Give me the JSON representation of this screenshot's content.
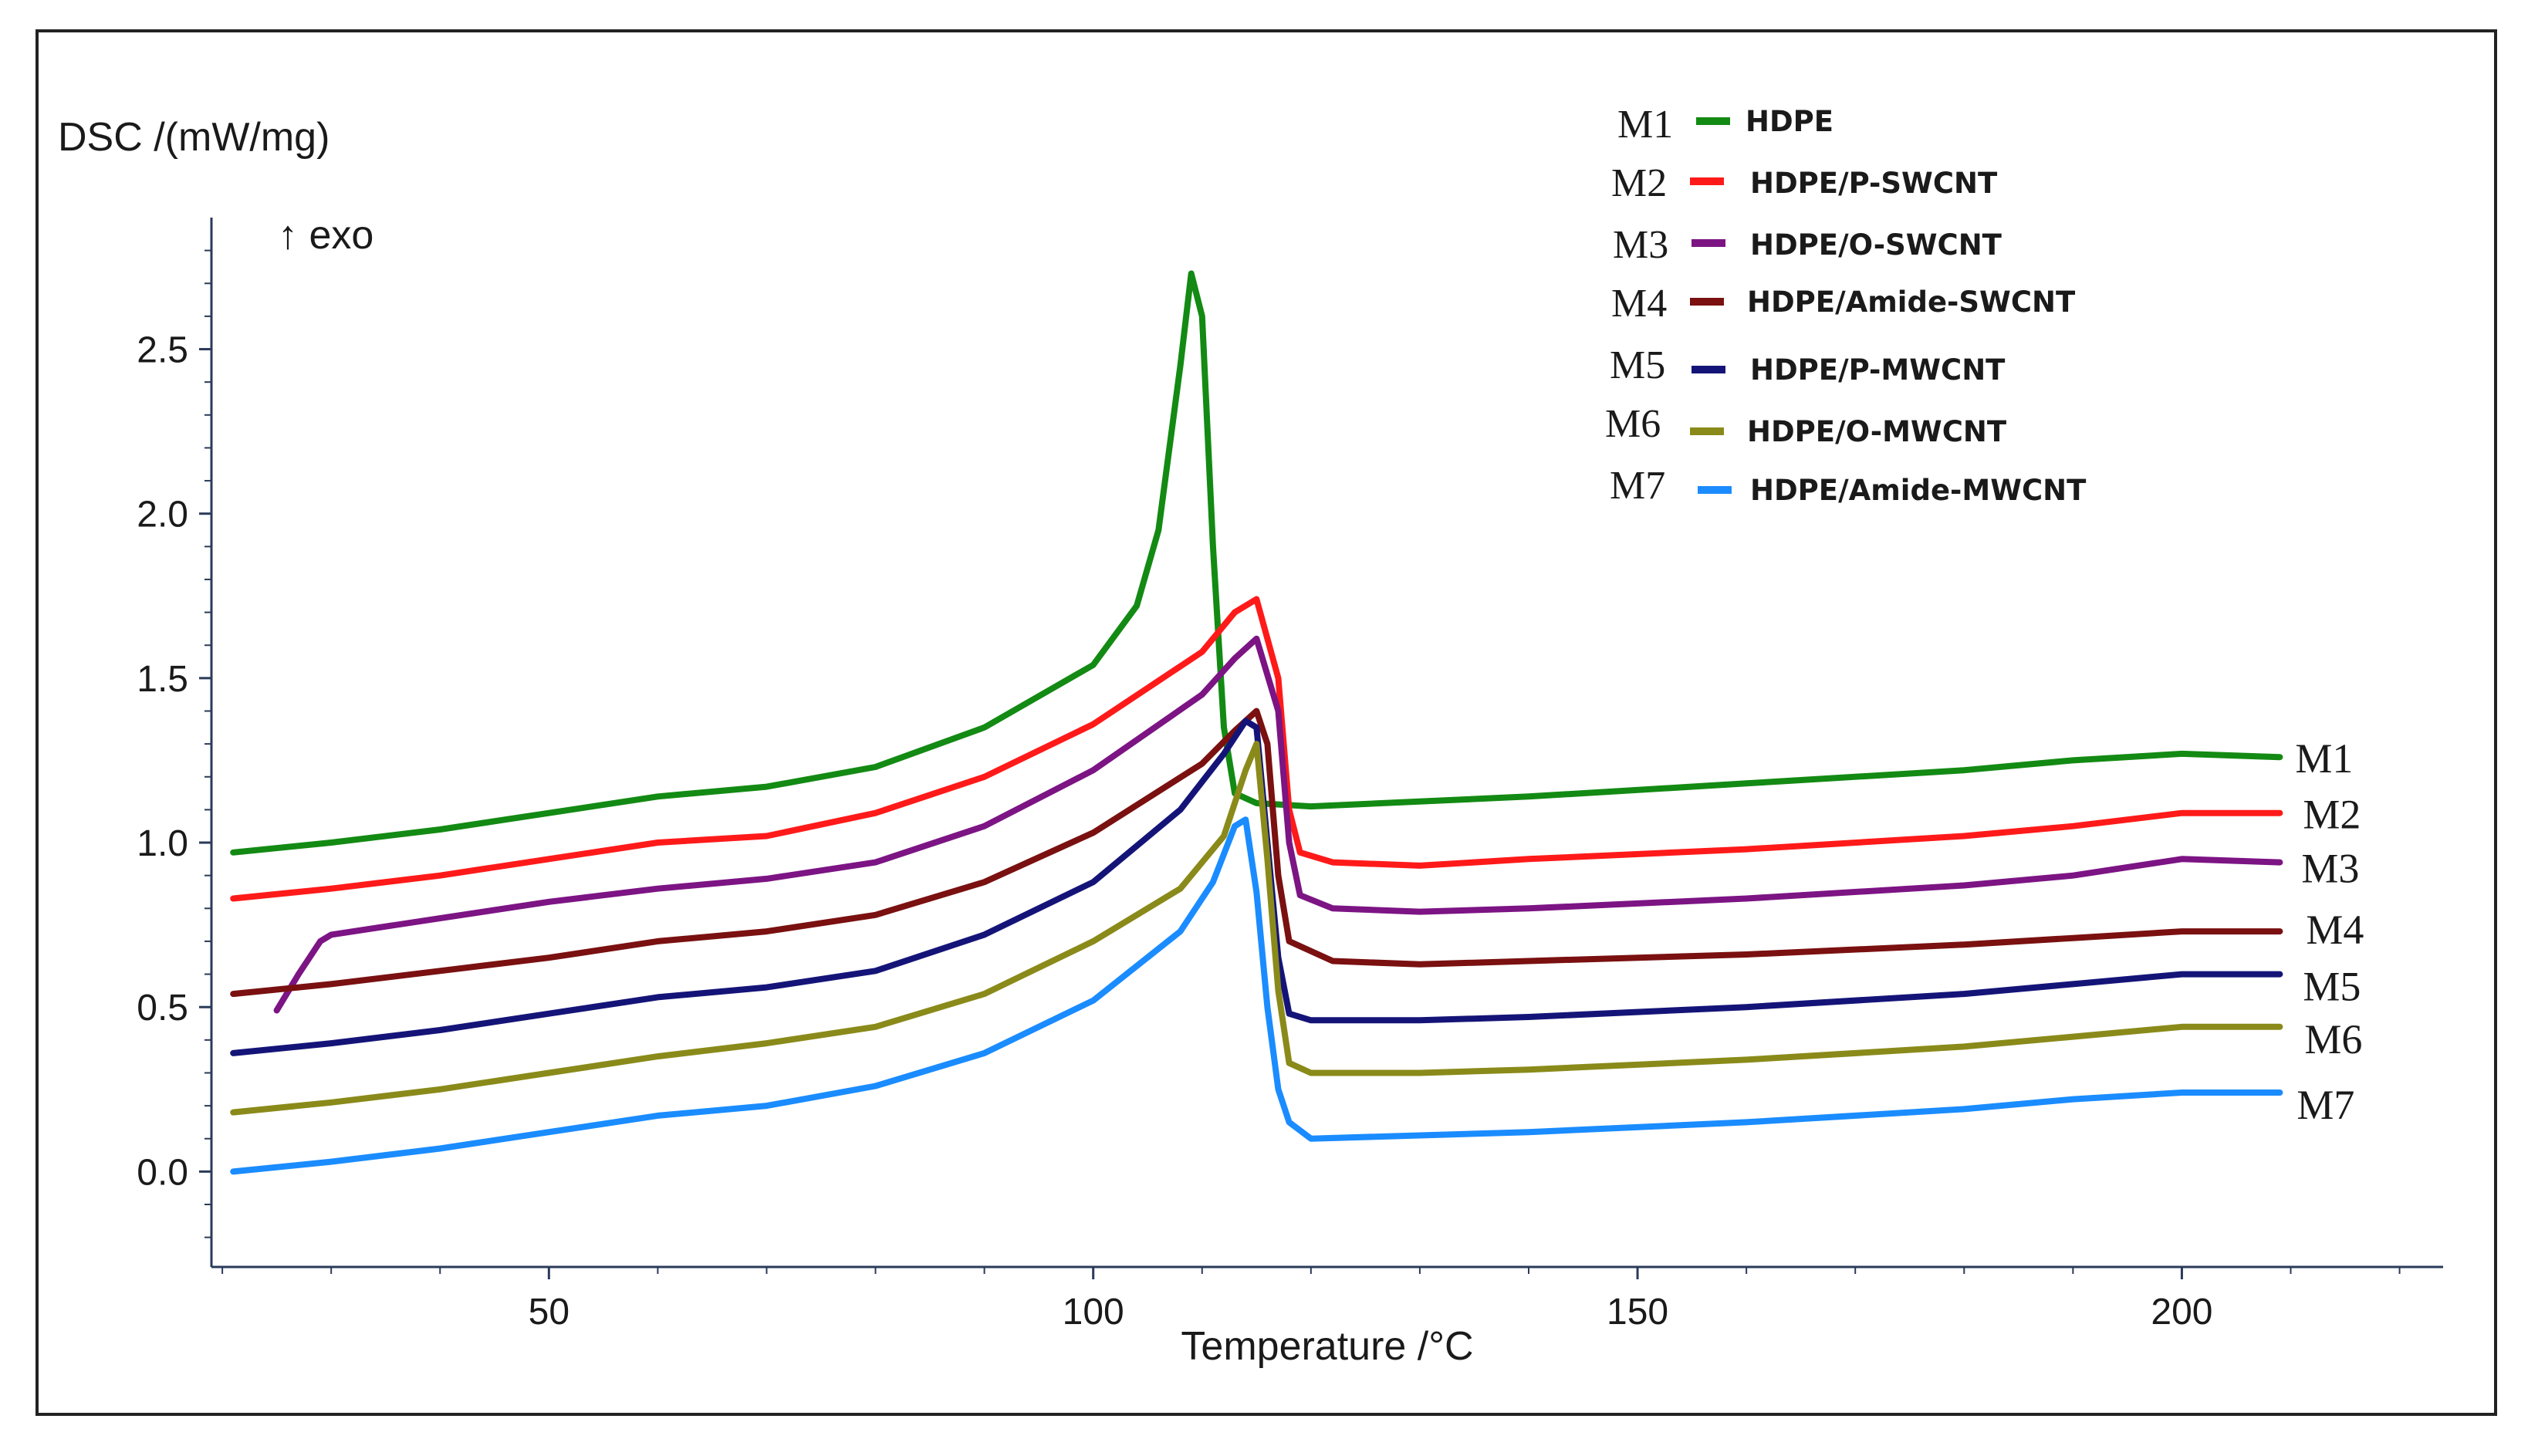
{
  "chart_data": {
    "type": "line",
    "ylabel": "DSC /(mW/mg)",
    "xlabel": "Temperature /°C",
    "direction_note": "↑ exo",
    "xlim": [
      19,
      224
    ],
    "ylim": [
      -0.29,
      2.9
    ],
    "x_ticks": [
      50,
      100,
      150,
      200
    ],
    "x_tick_labels": [
      "50",
      "100",
      "150",
      "200"
    ],
    "y_ticks": [
      0.0,
      0.5,
      1.0,
      1.5,
      2.0,
      2.5
    ],
    "y_tick_labels": [
      "0.0",
      "0.5",
      "1.0",
      "1.5",
      "2.0",
      "2.5"
    ],
    "legend_position": "top-right",
    "series": [
      {
        "id": "M1",
        "name": "HDPE",
        "color": "#138a13",
        "points": [
          [
            21,
            0.97
          ],
          [
            30,
            1.0
          ],
          [
            40,
            1.04
          ],
          [
            50,
            1.09
          ],
          [
            60,
            1.14
          ],
          [
            70,
            1.17
          ],
          [
            80,
            1.23
          ],
          [
            90,
            1.35
          ],
          [
            100,
            1.54
          ],
          [
            104,
            1.72
          ],
          [
            106,
            1.95
          ],
          [
            108,
            2.45
          ],
          [
            109,
            2.73
          ],
          [
            110,
            2.6
          ],
          [
            111,
            1.9
          ],
          [
            112,
            1.35
          ],
          [
            113,
            1.15
          ],
          [
            115,
            1.12
          ],
          [
            120,
            1.11
          ],
          [
            140,
            1.14
          ],
          [
            160,
            1.18
          ],
          [
            180,
            1.22
          ],
          [
            190,
            1.25
          ],
          [
            200,
            1.27
          ],
          [
            209,
            1.26
          ]
        ]
      },
      {
        "id": "M2",
        "name": "HDPE/P-SWCNT",
        "color": "#ff1a1a",
        "points": [
          [
            21,
            0.83
          ],
          [
            30,
            0.86
          ],
          [
            40,
            0.9
          ],
          [
            50,
            0.95
          ],
          [
            60,
            1.0
          ],
          [
            70,
            1.02
          ],
          [
            80,
            1.09
          ],
          [
            90,
            1.2
          ],
          [
            100,
            1.36
          ],
          [
            110,
            1.58
          ],
          [
            113,
            1.7
          ],
          [
            115,
            1.74
          ],
          [
            117,
            1.5
          ],
          [
            118,
            1.1
          ],
          [
            119,
            0.97
          ],
          [
            122,
            0.94
          ],
          [
            130,
            0.93
          ],
          [
            140,
            0.95
          ],
          [
            160,
            0.98
          ],
          [
            180,
            1.02
          ],
          [
            190,
            1.05
          ],
          [
            200,
            1.09
          ],
          [
            209,
            1.09
          ]
        ]
      },
      {
        "id": "M3",
        "name": "HDPE/O-SWCNT",
        "color": "#7c1484",
        "points": [
          [
            25,
            0.49
          ],
          [
            27,
            0.6
          ],
          [
            29,
            0.7
          ],
          [
            30,
            0.72
          ],
          [
            40,
            0.77
          ],
          [
            50,
            0.82
          ],
          [
            60,
            0.86
          ],
          [
            70,
            0.89
          ],
          [
            80,
            0.94
          ],
          [
            90,
            1.05
          ],
          [
            100,
            1.22
          ],
          [
            110,
            1.45
          ],
          [
            113,
            1.56
          ],
          [
            115,
            1.62
          ],
          [
            117,
            1.4
          ],
          [
            118,
            1.0
          ],
          [
            119,
            0.84
          ],
          [
            122,
            0.8
          ],
          [
            130,
            0.79
          ],
          [
            140,
            0.8
          ],
          [
            160,
            0.83
          ],
          [
            180,
            0.87
          ],
          [
            190,
            0.9
          ],
          [
            200,
            0.95
          ],
          [
            209,
            0.94
          ]
        ]
      },
      {
        "id": "M4",
        "name": "HDPE/Amide-SWCNT",
        "color": "#7a1010",
        "points": [
          [
            21,
            0.54
          ],
          [
            30,
            0.57
          ],
          [
            40,
            0.61
          ],
          [
            50,
            0.65
          ],
          [
            60,
            0.7
          ],
          [
            70,
            0.73
          ],
          [
            80,
            0.78
          ],
          [
            90,
            0.88
          ],
          [
            100,
            1.03
          ],
          [
            110,
            1.24
          ],
          [
            113,
            1.34
          ],
          [
            115,
            1.4
          ],
          [
            116,
            1.3
          ],
          [
            117,
            0.9
          ],
          [
            118,
            0.7
          ],
          [
            122,
            0.64
          ],
          [
            130,
            0.63
          ],
          [
            140,
            0.64
          ],
          [
            160,
            0.66
          ],
          [
            180,
            0.69
          ],
          [
            190,
            0.71
          ],
          [
            200,
            0.73
          ],
          [
            209,
            0.73
          ]
        ]
      },
      {
        "id": "M5",
        "name": "HDPE/P-MWCNT",
        "color": "#141478",
        "points": [
          [
            21,
            0.36
          ],
          [
            30,
            0.39
          ],
          [
            40,
            0.43
          ],
          [
            50,
            0.48
          ],
          [
            60,
            0.53
          ],
          [
            70,
            0.56
          ],
          [
            80,
            0.61
          ],
          [
            90,
            0.72
          ],
          [
            100,
            0.88
          ],
          [
            108,
            1.1
          ],
          [
            112,
            1.27
          ],
          [
            114,
            1.37
          ],
          [
            115,
            1.35
          ],
          [
            116,
            1.0
          ],
          [
            117,
            0.65
          ],
          [
            118,
            0.48
          ],
          [
            120,
            0.46
          ],
          [
            130,
            0.46
          ],
          [
            140,
            0.47
          ],
          [
            160,
            0.5
          ],
          [
            180,
            0.54
          ],
          [
            190,
            0.57
          ],
          [
            200,
            0.6
          ],
          [
            209,
            0.6
          ]
        ]
      },
      {
        "id": "M6",
        "name": "HDPE/O-MWCNT",
        "color": "#8a8a1a",
        "points": [
          [
            21,
            0.18
          ],
          [
            30,
            0.21
          ],
          [
            40,
            0.25
          ],
          [
            50,
            0.3
          ],
          [
            60,
            0.35
          ],
          [
            70,
            0.39
          ],
          [
            80,
            0.44
          ],
          [
            90,
            0.54
          ],
          [
            100,
            0.7
          ],
          [
            108,
            0.86
          ],
          [
            112,
            1.02
          ],
          [
            114,
            1.22
          ],
          [
            115,
            1.3
          ],
          [
            116,
            0.95
          ],
          [
            117,
            0.55
          ],
          [
            118,
            0.33
          ],
          [
            120,
            0.3
          ],
          [
            130,
            0.3
          ],
          [
            140,
            0.31
          ],
          [
            160,
            0.34
          ],
          [
            180,
            0.38
          ],
          [
            190,
            0.41
          ],
          [
            200,
            0.44
          ],
          [
            209,
            0.44
          ]
        ]
      },
      {
        "id": "M7",
        "name": "HDPE/Amide-MWCNT",
        "color": "#1a8cff",
        "points": [
          [
            21,
            0.0
          ],
          [
            30,
            0.03
          ],
          [
            40,
            0.07
          ],
          [
            50,
            0.12
          ],
          [
            60,
            0.17
          ],
          [
            70,
            0.2
          ],
          [
            80,
            0.26
          ],
          [
            90,
            0.36
          ],
          [
            100,
            0.52
          ],
          [
            108,
            0.73
          ],
          [
            111,
            0.88
          ],
          [
            113,
            1.05
          ],
          [
            114,
            1.07
          ],
          [
            115,
            0.85
          ],
          [
            116,
            0.5
          ],
          [
            117,
            0.25
          ],
          [
            118,
            0.15
          ],
          [
            120,
            0.1
          ],
          [
            130,
            0.11
          ],
          [
            140,
            0.12
          ],
          [
            160,
            0.15
          ],
          [
            180,
            0.19
          ],
          [
            190,
            0.22
          ],
          [
            200,
            0.24
          ],
          [
            209,
            0.24
          ]
        ]
      }
    ]
  }
}
